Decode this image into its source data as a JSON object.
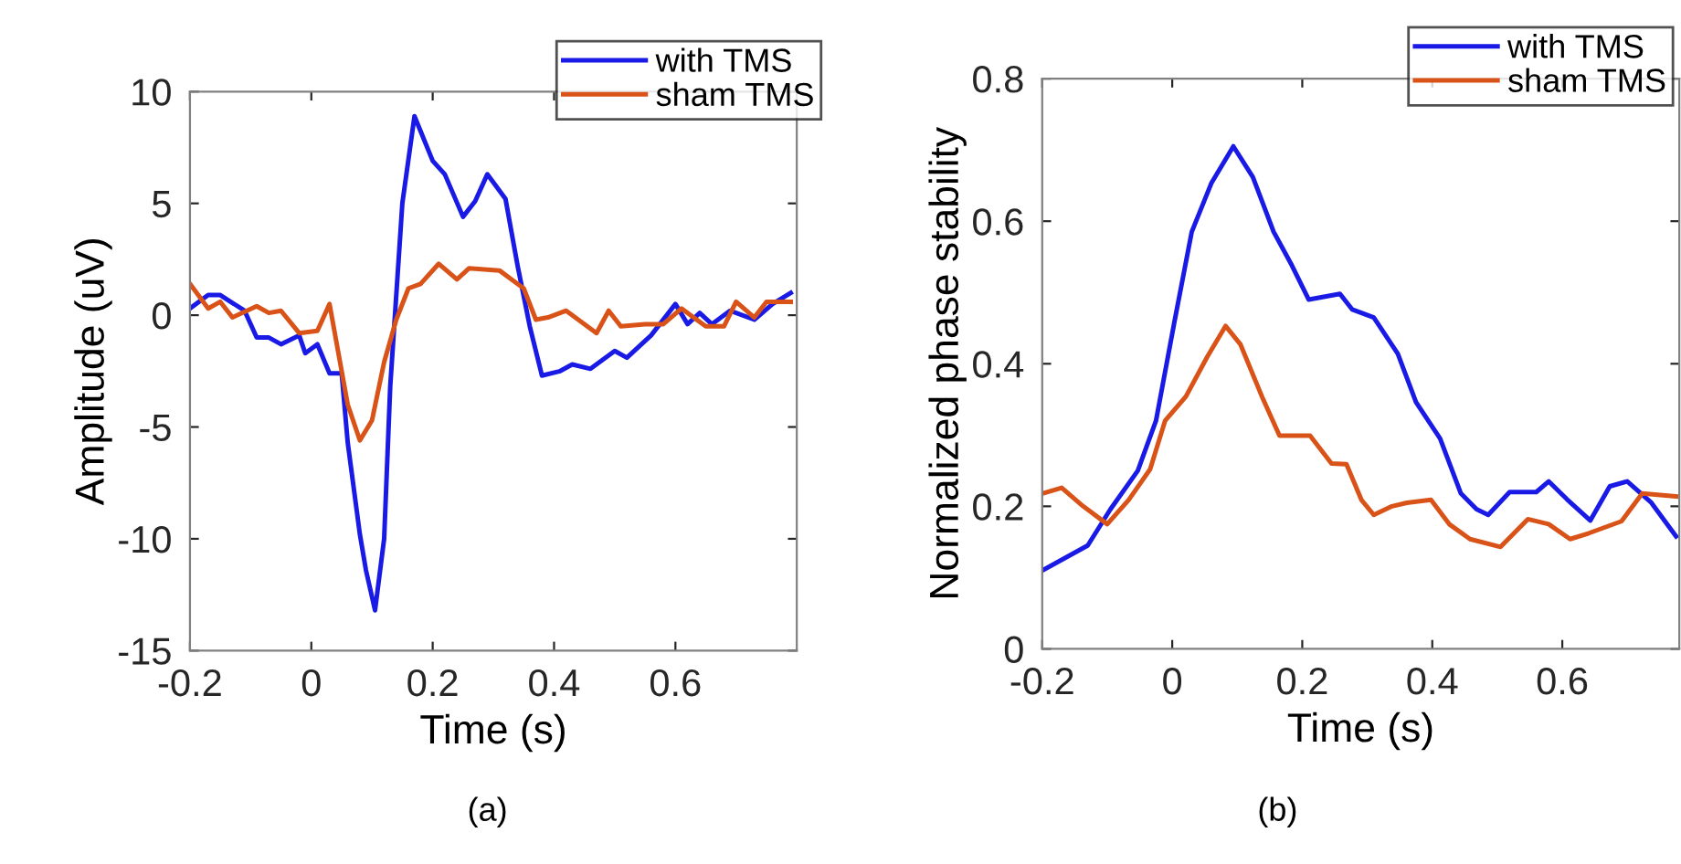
{
  "chart_data": [
    {
      "type": "line",
      "xlabel": "Time (s)",
      "ylabel": "Amplitude (uV)",
      "annotations": [
        "(a)"
      ],
      "xlim": [
        -0.2,
        0.8
      ],
      "ylim": [
        -15,
        10
      ],
      "xticks": [
        -0.2,
        0,
        0.2,
        0.4,
        0.6
      ],
      "yticks": [
        -15,
        -10,
        -5,
        0,
        5,
        10
      ],
      "grid": false,
      "legend": "top right",
      "line_style": "solid",
      "series": [
        {
          "name": "with TMS",
          "color": "#1a1ae6",
          "x": [
            -0.2,
            -0.17,
            -0.15,
            -0.11,
            -0.09,
            -0.07,
            -0.05,
            -0.02,
            -0.01,
            0.01,
            0.03,
            0.05,
            0.06,
            0.08,
            0.09,
            0.105,
            0.12,
            0.13,
            0.15,
            0.17,
            0.2,
            0.22,
            0.25,
            0.27,
            0.29,
            0.32,
            0.34,
            0.36,
            0.38,
            0.41,
            0.43,
            0.46,
            0.5,
            0.52,
            0.56,
            0.6,
            0.62,
            0.64,
            0.66,
            0.69,
            0.73,
            0.76,
            0.79
          ],
          "values": [
            0.3,
            0.9,
            0.9,
            0.2,
            -1.0,
            -1.0,
            -1.3,
            -0.9,
            -1.7,
            -1.3,
            -2.6,
            -2.6,
            -5.7,
            -9.8,
            -11.4,
            -13.2,
            -10.0,
            -3.2,
            5.0,
            8.9,
            6.9,
            6.3,
            4.4,
            5.1,
            6.3,
            5.2,
            2.2,
            -0.5,
            -2.7,
            -2.5,
            -2.2,
            -2.4,
            -1.6,
            -1.9,
            -0.9,
            0.5,
            -0.4,
            0.1,
            -0.4,
            0.2,
            -0.2,
            0.5,
            1.0
          ]
        },
        {
          "name": "sham TMS",
          "color": "#d95319",
          "x": [
            -0.2,
            -0.17,
            -0.15,
            -0.13,
            -0.09,
            -0.07,
            -0.05,
            -0.02,
            0.01,
            0.03,
            0.04,
            0.06,
            0.08,
            0.1,
            0.12,
            0.14,
            0.16,
            0.18,
            0.21,
            0.24,
            0.26,
            0.31,
            0.33,
            0.35,
            0.37,
            0.39,
            0.42,
            0.47,
            0.49,
            0.51,
            0.55,
            0.58,
            0.61,
            0.65,
            0.68,
            0.7,
            0.73,
            0.75,
            0.79
          ],
          "values": [
            1.4,
            0.3,
            0.6,
            -0.1,
            0.4,
            0.1,
            0.2,
            -0.8,
            -0.7,
            0.5,
            -1.0,
            -4.0,
            -5.6,
            -4.7,
            -2.1,
            -0.2,
            1.2,
            1.4,
            2.3,
            1.6,
            2.1,
            2.0,
            1.6,
            1.2,
            -0.2,
            -0.1,
            0.2,
            -0.8,
            0.2,
            -0.5,
            -0.4,
            -0.4,
            0.3,
            -0.5,
            -0.5,
            0.6,
            -0.1,
            0.6,
            0.6
          ]
        }
      ]
    },
    {
      "type": "line",
      "xlabel": "Time (s)",
      "ylabel": "Normalized phase stability",
      "annotations": [
        "(b)"
      ],
      "xlim": [
        -0.2,
        0.78
      ],
      "ylim": [
        0,
        0.8
      ],
      "xticks": [
        -0.2,
        0,
        0.2,
        0.4,
        0.6
      ],
      "yticks": [
        0,
        0.2,
        0.4,
        0.6,
        0.8
      ],
      "grid": false,
      "legend": "top right",
      "line_style": "solid",
      "series": [
        {
          "name": "with TMS",
          "color": "#1a1ae6",
          "x": [
            -0.2,
            -0.13,
            -0.095,
            -0.053,
            -0.025,
            0.003,
            0.03,
            0.06,
            0.094,
            0.124,
            0.156,
            0.184,
            0.21,
            0.258,
            0.277,
            0.31,
            0.347,
            0.375,
            0.412,
            0.444,
            0.468,
            0.486,
            0.519,
            0.56,
            0.579,
            0.607,
            0.643,
            0.673,
            0.7,
            0.737,
            0.775
          ],
          "values": [
            0.11,
            0.145,
            0.196,
            0.25,
            0.32,
            0.457,
            0.585,
            0.653,
            0.705,
            0.662,
            0.585,
            0.538,
            0.49,
            0.498,
            0.476,
            0.465,
            0.414,
            0.346,
            0.295,
            0.218,
            0.196,
            0.188,
            0.22,
            0.22,
            0.235,
            0.21,
            0.18,
            0.228,
            0.235,
            0.205,
            0.158
          ]
        },
        {
          "name": "sham TMS",
          "color": "#d95319",
          "x": [
            -0.2,
            -0.17,
            -0.137,
            -0.1,
            -0.067,
            -0.034,
            -0.011,
            0.021,
            0.054,
            0.082,
            0.105,
            0.138,
            0.165,
            0.212,
            0.245,
            0.268,
            0.291,
            0.31,
            0.338,
            0.361,
            0.398,
            0.426,
            0.458,
            0.505,
            0.547,
            0.579,
            0.612,
            0.64,
            0.691,
            0.723,
            0.775
          ],
          "values": [
            0.218,
            0.226,
            0.2,
            0.175,
            0.209,
            0.252,
            0.32,
            0.354,
            0.41,
            0.453,
            0.427,
            0.354,
            0.299,
            0.299,
            0.26,
            0.259,
            0.209,
            0.188,
            0.2,
            0.205,
            0.209,
            0.175,
            0.154,
            0.143,
            0.182,
            0.175,
            0.154,
            0.162,
            0.179,
            0.218,
            0.214
          ]
        }
      ]
    }
  ]
}
